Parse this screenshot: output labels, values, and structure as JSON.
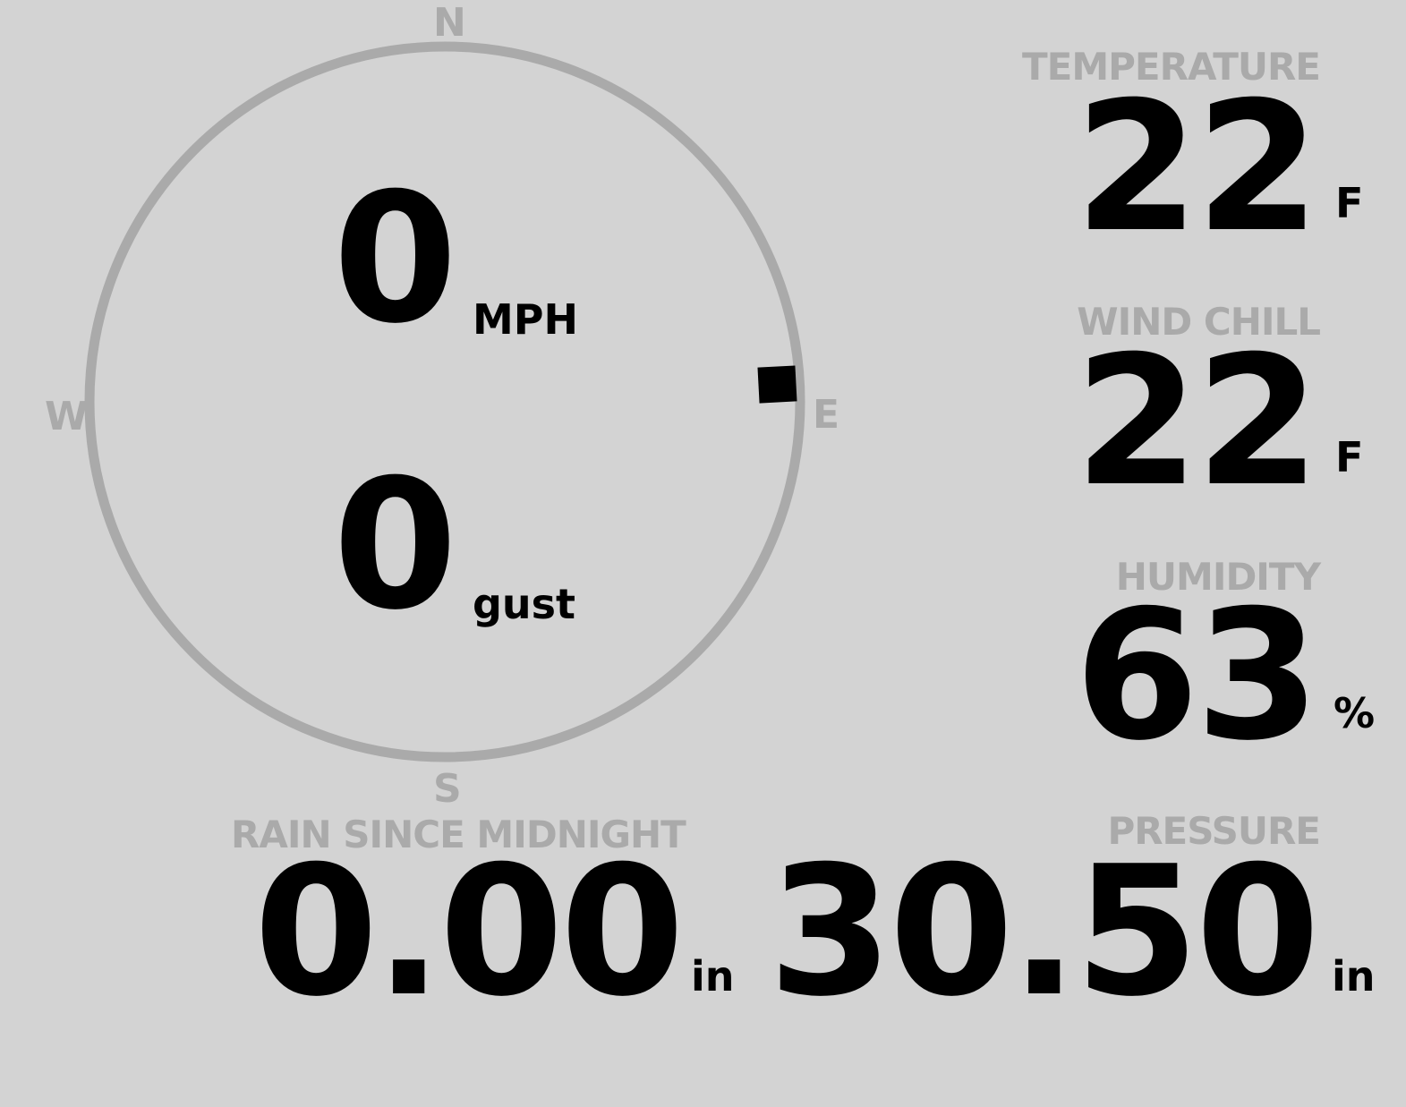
{
  "compass": {
    "north": "N",
    "south": "S",
    "east": "E",
    "west": "W",
    "wind_direction_deg": 87,
    "wind_speed": "0",
    "wind_speed_unit": "MPH",
    "gust": "0",
    "gust_unit": "gust"
  },
  "readings": {
    "temperature": {
      "label": "TEMPERATURE",
      "value": "22",
      "unit": "F"
    },
    "wind_chill": {
      "label": "WIND CHILL",
      "value": "22",
      "unit": "F"
    },
    "humidity": {
      "label": "HUMIDITY",
      "value": "63",
      "unit": "%"
    },
    "rain": {
      "label": "RAIN SINCE MIDNIGHT",
      "value": "0.00",
      "unit": "in"
    },
    "pressure": {
      "label": "PRESSURE",
      "value": "30.50",
      "unit": "in"
    }
  },
  "colors": {
    "background": "#d3d3d3",
    "label": "#aaaaaa",
    "value": "#000000"
  }
}
